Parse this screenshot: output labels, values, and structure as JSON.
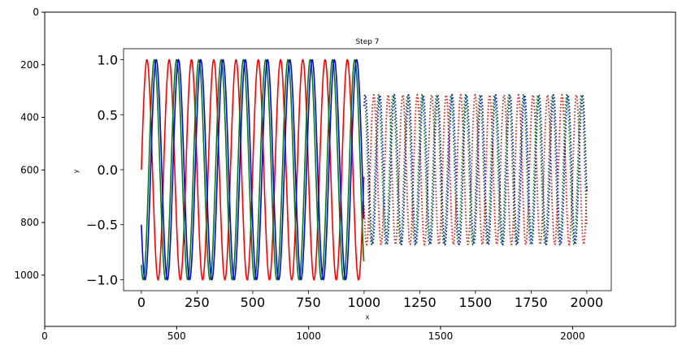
{
  "outer_axes": {
    "x_ticks": [
      0,
      500,
      1000,
      1500,
      2000
    ],
    "x_tick_labels": [
      "0",
      "500",
      "1000",
      "1500",
      "2000"
    ],
    "y_ticks": [
      0,
      200,
      400,
      600,
      800,
      1000
    ],
    "y_tick_labels": [
      "0",
      "200",
      "400",
      "600",
      "800",
      "1000"
    ],
    "xlim": [
      0,
      2390
    ],
    "ylim": [
      1195,
      0
    ]
  },
  "chart_data": {
    "type": "line",
    "title": "Step 7",
    "xlabel": "x",
    "ylabel": "y",
    "xlim": [
      -80,
      2110
    ],
    "ylim": [
      -1.1,
      1.1
    ],
    "x_ticks": [
      0,
      250,
      500,
      750,
      1000,
      1250,
      1500,
      1750,
      2000
    ],
    "x_tick_labels": [
      "0",
      "250",
      "500",
      "750",
      "1000",
      "1250",
      "1500",
      "1750",
      "2000"
    ],
    "y_ticks": [
      1.0,
      0.5,
      0.0,
      -0.5,
      -1.0
    ],
    "y_tick_labels": [
      "1.0",
      "0.5",
      "0.0",
      "−0.5",
      "−1.0"
    ],
    "grid": false,
    "legend": "none",
    "series": [
      {
        "color": "#ff0000",
        "style": "solid",
        "x_range": [
          0,
          999
        ],
        "amplitude": 1.0,
        "period": 100,
        "phase_deg": 0
      },
      {
        "color": "#008000",
        "style": "solid",
        "x_range": [
          0,
          999
        ],
        "amplitude": 1.0,
        "period": 100,
        "phase_deg": -120
      },
      {
        "color": "#0000ff",
        "style": "solid",
        "x_range": [
          0,
          999
        ],
        "amplitude": 1.0,
        "period": 100,
        "phase_deg": -150
      },
      {
        "color": "#ff0000",
        "style": "dotted",
        "x_range": [
          1000,
          2000
        ],
        "amplitude": 0.68,
        "period": 65,
        "phase_deg": 70
      },
      {
        "color": "#008000",
        "style": "dotted",
        "x_range": [
          1000,
          2000
        ],
        "amplitude": 0.68,
        "period": 65,
        "phase_deg": -50
      },
      {
        "color": "#0000ff",
        "style": "dotted",
        "x_range": [
          1000,
          2000
        ],
        "amplitude": 0.68,
        "period": 65,
        "phase_deg": -80
      }
    ]
  }
}
